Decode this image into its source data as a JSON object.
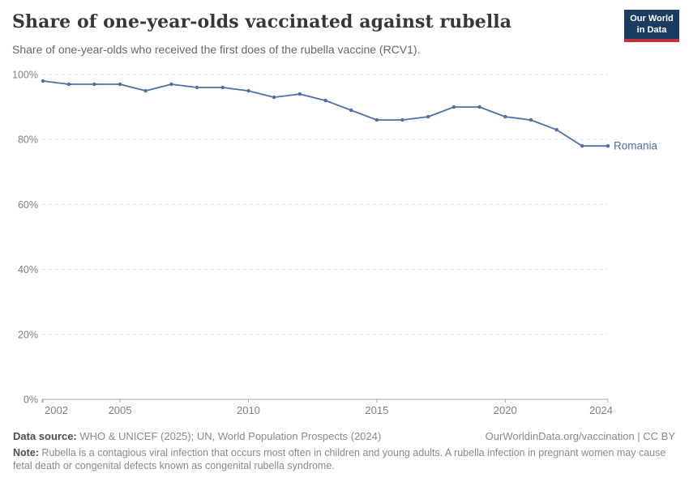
{
  "header": {
    "title": "Share of one-year-olds vaccinated against rubella",
    "subtitle": "Share of one-year-olds who received the first does of the rubella vaccine (RCV1)."
  },
  "logo": {
    "line1": "Our World",
    "line2": "in Data",
    "bg_color": "#1d3c61",
    "accent_color": "#c5303e"
  },
  "chart_data": {
    "type": "line",
    "x": [
      2002,
      2003,
      2004,
      2005,
      2006,
      2007,
      2008,
      2009,
      2010,
      2011,
      2012,
      2013,
      2014,
      2015,
      2016,
      2017,
      2018,
      2019,
      2020,
      2021,
      2022,
      2023,
      2024
    ],
    "series": [
      {
        "name": "Romania",
        "color": "#4e6ea5",
        "values": [
          98,
          97,
          97,
          97,
          95,
          97,
          96,
          96,
          95,
          93,
          94,
          92,
          89,
          86,
          86,
          87,
          90,
          90,
          87,
          86,
          83,
          78,
          78
        ]
      }
    ],
    "ylim": [
      0,
      100
    ],
    "yticks": [
      {
        "value": 0,
        "label": "0%"
      },
      {
        "value": 20,
        "label": "20%"
      },
      {
        "value": 40,
        "label": "40%"
      },
      {
        "value": 60,
        "label": "60%"
      },
      {
        "value": 80,
        "label": "80%"
      },
      {
        "value": 100,
        "label": "100%"
      }
    ],
    "xticks": [
      {
        "value": 2002,
        "label": "2002"
      },
      {
        "value": 2005,
        "label": "2005"
      },
      {
        "value": 2010,
        "label": "2010"
      },
      {
        "value": 2015,
        "label": "2015"
      },
      {
        "value": 2020,
        "label": "2020"
      },
      {
        "value": 2024,
        "label": "2024"
      }
    ],
    "grid": "horizontal-dashed",
    "legend_position": "end-of-line",
    "grid_color": "#dedede",
    "axis_color": "#a8a8a8",
    "tick_label_color": "#7f7f87"
  },
  "footer": {
    "source_label": "Data source:",
    "source_text": " WHO & UNICEF (2025); UN, World Population Prospects (2024)",
    "link_text": "OurWorldinData.org/vaccination | CC BY",
    "note_label": "Note:",
    "note_text": " Rubella is a contagious viral infection that occurs most often in children and young adults. A rubella infection in pregnant women may cause fetal death or congenital defects known as congenital rubella syndrome."
  }
}
